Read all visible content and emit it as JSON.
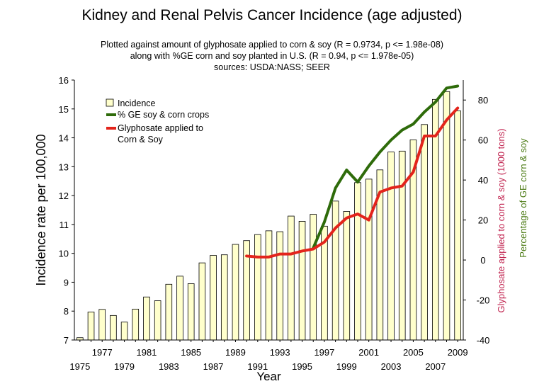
{
  "title": "Kidney and Renal Pelvis Cancer Incidence (age adjusted)",
  "subtitle_lines": [
    "Plotted against amount of glyphosate applied to corn & soy (R = 0.9734, p <= 1.98e-08)",
    "along with %GE corn and soy planted in U.S. (R = 0.94, p <= 1.978e-05)",
    "sources: USDA:NASS; SEER"
  ],
  "colors": {
    "bar_fill": "#ffffcc",
    "bar_stroke": "#000000",
    "ge_line": "#2e6b0a",
    "glyphosate_line": "#e3241b",
    "right_label1": "#c0224e",
    "right_label2": "#4a7a12"
  },
  "chart_data": {
    "type": "bar+line",
    "xlabel": "Year",
    "ylabel": "Incidence rate per 100,000",
    "ylabel_right_1": "Glyphosate applied to corn & soy (1000 tons)",
    "ylabel_right_2": "Percentage of GE corn & soy",
    "ylim": [
      7,
      16
    ],
    "yticks": [
      "7",
      "8",
      "9",
      "10",
      "11",
      "12",
      "13",
      "14",
      "15",
      "16"
    ],
    "ylim_right": [
      -40,
      90
    ],
    "yticks_right": [
      "-40",
      "-20",
      "0",
      "20",
      "40",
      "60",
      "80"
    ],
    "xticks_odd_upper": [
      "1977",
      "1981",
      "1985",
      "1989",
      "1993",
      "1997",
      "2001",
      "2005",
      "2009"
    ],
    "xticks_odd_lower": [
      "1975",
      "1979",
      "1983",
      "1987",
      "1991",
      "1995",
      "1999",
      "2003",
      "2007"
    ],
    "legend": [
      "Incidence",
      "% GE soy & corn crops",
      "Glyphosate applied to\nCorn & Soy"
    ],
    "legend_position": "top-left",
    "grid": false,
    "years": [
      1975,
      1976,
      1977,
      1978,
      1979,
      1980,
      1981,
      1982,
      1983,
      1984,
      1985,
      1986,
      1987,
      1988,
      1989,
      1990,
      1991,
      1992,
      1993,
      1994,
      1995,
      1996,
      1997,
      1998,
      1999,
      2000,
      2001,
      2002,
      2003,
      2004,
      2005,
      2006,
      2007,
      2008,
      2009
    ],
    "series": [
      {
        "name": "Incidence",
        "kind": "bar",
        "axis": "left",
        "values": [
          7.08,
          7.97,
          8.06,
          7.85,
          7.62,
          8.07,
          8.49,
          8.36,
          8.93,
          9.21,
          8.95,
          9.67,
          9.93,
          9.95,
          10.31,
          10.44,
          10.65,
          10.78,
          10.75,
          11.29,
          11.11,
          11.35,
          10.94,
          11.81,
          11.45,
          12.45,
          12.57,
          12.89,
          13.51,
          13.54,
          13.93,
          14.46,
          15.33,
          15.6,
          14.93
        ]
      },
      {
        "name": "% GE soy & corn crops",
        "kind": "line",
        "axis": "right",
        "x": [
          1996,
          1997,
          1998,
          1999,
          2000,
          2001,
          2002,
          2003,
          2004,
          2005,
          2006,
          2007,
          2008,
          2009
        ],
        "values": [
          6,
          19,
          36,
          45,
          39,
          47,
          54,
          60,
          65,
          68,
          74,
          79,
          86,
          87
        ]
      },
      {
        "name": "Glyphosate applied to\nCorn & Soy",
        "kind": "line",
        "axis": "right",
        "x": [
          1990,
          1991,
          1992,
          1993,
          1994,
          1995,
          1996,
          1997,
          1998,
          1999,
          2000,
          2001,
          2002,
          2003,
          2004,
          2005,
          2006,
          2007,
          2008,
          2009
        ],
        "values": [
          2,
          1.5,
          1.5,
          3,
          3,
          4.5,
          5.5,
          9,
          16,
          21,
          23,
          20,
          34,
          36,
          37,
          44,
          62,
          62,
          70,
          76
        ]
      }
    ]
  }
}
